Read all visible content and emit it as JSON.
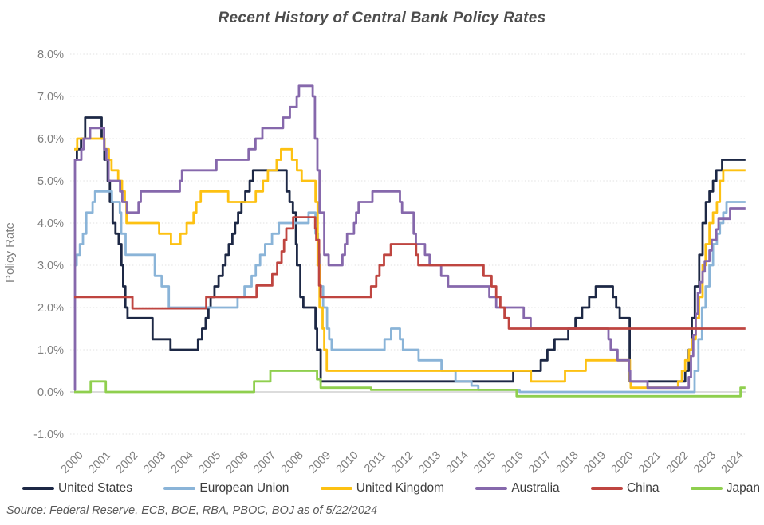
{
  "chart_data": {
    "type": "line",
    "title": "Recent History of Central Bank Policy Rates",
    "ylabel": "Policy Rate",
    "xlabel": "",
    "source_note": "Source: Federal Reserve, ECB, BOE, RBA, PBOC, BOJ as of 5/22/2024",
    "legend_position": "bottom",
    "grid": "horizontal-dotted",
    "step_interpolation": true,
    "ylim": [
      -1.0,
      8.0
    ],
    "x_range": [
      2000,
      2024.4
    ],
    "y_ticks": [
      8,
      7,
      6,
      5,
      4,
      3,
      2,
      1,
      0,
      -1
    ],
    "y_tick_labels": [
      "8.0%",
      "7.0%",
      "6.0%",
      "5.0%",
      "4.0%",
      "3.0%",
      "2.0%",
      "1.0%",
      "0.0%",
      "-1.0%"
    ],
    "x_ticks": [
      2000,
      2001,
      2002,
      2003,
      2004,
      2005,
      2006,
      2007,
      2008,
      2009,
      2010,
      2011,
      2012,
      2013,
      2014,
      2015,
      2016,
      2017,
      2018,
      2019,
      2020,
      2021,
      2022,
      2023,
      2024
    ],
    "x_tick_labels": [
      "2000",
      "2001",
      "2002",
      "2003",
      "2004",
      "2005",
      "2006",
      "2007",
      "2008",
      "2009",
      "2010",
      "2011",
      "2012",
      "2013",
      "2014",
      "2015",
      "2016",
      "2017",
      "2018",
      "2019",
      "2020",
      "2021",
      "2022",
      "2023",
      "2024"
    ],
    "axis_text_color": "#7f7f7f",
    "grid_color": "#e2e2e2",
    "zero_line_color": "#c8c8c8",
    "series": [
      {
        "name": "United States",
        "color": "#1d2845",
        "points": [
          [
            2000.0,
            5.5
          ],
          [
            2000.1,
            5.75
          ],
          [
            2000.25,
            6.0
          ],
          [
            2000.4,
            6.5
          ],
          [
            2001.0,
            6.0
          ],
          [
            2001.1,
            5.5
          ],
          [
            2001.22,
            5.0
          ],
          [
            2001.3,
            4.5
          ],
          [
            2001.4,
            4.0
          ],
          [
            2001.5,
            3.75
          ],
          [
            2001.62,
            3.5
          ],
          [
            2001.72,
            3.0
          ],
          [
            2001.78,
            2.5
          ],
          [
            2001.86,
            2.0
          ],
          [
            2001.94,
            1.75
          ],
          [
            2002.85,
            1.25
          ],
          [
            2003.5,
            1.0
          ],
          [
            2004.5,
            1.25
          ],
          [
            2004.65,
            1.5
          ],
          [
            2004.78,
            1.75
          ],
          [
            2004.88,
            2.0
          ],
          [
            2004.96,
            2.25
          ],
          [
            2005.1,
            2.5
          ],
          [
            2005.25,
            2.75
          ],
          [
            2005.4,
            3.0
          ],
          [
            2005.5,
            3.25
          ],
          [
            2005.62,
            3.5
          ],
          [
            2005.75,
            3.75
          ],
          [
            2005.85,
            4.0
          ],
          [
            2005.96,
            4.25
          ],
          [
            2006.08,
            4.5
          ],
          [
            2006.22,
            4.75
          ],
          [
            2006.38,
            5.0
          ],
          [
            2006.5,
            5.25
          ],
          [
            2007.72,
            4.75
          ],
          [
            2007.83,
            4.5
          ],
          [
            2007.95,
            4.25
          ],
          [
            2008.06,
            3.5
          ],
          [
            2008.1,
            3.0
          ],
          [
            2008.22,
            2.25
          ],
          [
            2008.33,
            2.0
          ],
          [
            2008.77,
            1.5
          ],
          [
            2008.83,
            1.0
          ],
          [
            2008.96,
            0.25
          ],
          [
            2015.96,
            0.5
          ],
          [
            2016.96,
            0.75
          ],
          [
            2017.2,
            1.0
          ],
          [
            2017.46,
            1.25
          ],
          [
            2017.96,
            1.5
          ],
          [
            2018.22,
            1.75
          ],
          [
            2018.46,
            2.0
          ],
          [
            2018.72,
            2.25
          ],
          [
            2018.96,
            2.5
          ],
          [
            2019.58,
            2.25
          ],
          [
            2019.7,
            2.0
          ],
          [
            2019.83,
            1.75
          ],
          [
            2020.19,
            0.25
          ],
          [
            2022.21,
            0.5
          ],
          [
            2022.34,
            1.0
          ],
          [
            2022.45,
            1.75
          ],
          [
            2022.56,
            2.5
          ],
          [
            2022.72,
            3.25
          ],
          [
            2022.84,
            4.0
          ],
          [
            2022.96,
            4.5
          ],
          [
            2023.09,
            4.75
          ],
          [
            2023.22,
            5.0
          ],
          [
            2023.34,
            5.25
          ],
          [
            2023.55,
            5.5
          ]
        ]
      },
      {
        "name": "European Union",
        "color": "#8ab4d8",
        "points": [
          [
            2000.0,
            3.0
          ],
          [
            2000.09,
            3.25
          ],
          [
            2000.21,
            3.5
          ],
          [
            2000.32,
            3.75
          ],
          [
            2000.44,
            4.25
          ],
          [
            2000.67,
            4.5
          ],
          [
            2000.76,
            4.75
          ],
          [
            2001.37,
            4.5
          ],
          [
            2001.66,
            4.25
          ],
          [
            2001.71,
            3.75
          ],
          [
            2001.87,
            3.25
          ],
          [
            2002.93,
            2.75
          ],
          [
            2003.18,
            2.5
          ],
          [
            2003.44,
            2.0
          ],
          [
            2005.94,
            2.25
          ],
          [
            2006.19,
            2.5
          ],
          [
            2006.45,
            2.75
          ],
          [
            2006.6,
            3.0
          ],
          [
            2006.76,
            3.25
          ],
          [
            2006.94,
            3.5
          ],
          [
            2007.19,
            3.75
          ],
          [
            2007.44,
            4.0
          ],
          [
            2008.52,
            4.25
          ],
          [
            2008.77,
            3.75
          ],
          [
            2008.86,
            3.25
          ],
          [
            2008.94,
            2.5
          ],
          [
            2009.05,
            2.0
          ],
          [
            2009.19,
            1.5
          ],
          [
            2009.27,
            1.25
          ],
          [
            2009.36,
            1.0
          ],
          [
            2011.28,
            1.25
          ],
          [
            2011.52,
            1.5
          ],
          [
            2011.84,
            1.25
          ],
          [
            2011.95,
            1.0
          ],
          [
            2012.52,
            0.75
          ],
          [
            2013.35,
            0.5
          ],
          [
            2013.86,
            0.25
          ],
          [
            2014.44,
            0.15
          ],
          [
            2014.69,
            0.05
          ],
          [
            2016.19,
            0.0
          ],
          [
            2022.55,
            0.5
          ],
          [
            2022.69,
            1.25
          ],
          [
            2022.82,
            2.0
          ],
          [
            2022.95,
            2.5
          ],
          [
            2023.09,
            3.0
          ],
          [
            2023.22,
            3.5
          ],
          [
            2023.36,
            3.75
          ],
          [
            2023.47,
            4.0
          ],
          [
            2023.59,
            4.25
          ],
          [
            2023.71,
            4.5
          ]
        ]
      },
      {
        "name": "United Kingdom",
        "color": "#fdc112",
        "points": [
          [
            2000.0,
            5.75
          ],
          [
            2000.11,
            6.0
          ],
          [
            2001.1,
            5.75
          ],
          [
            2001.26,
            5.5
          ],
          [
            2001.36,
            5.25
          ],
          [
            2001.6,
            5.0
          ],
          [
            2001.74,
            4.75
          ],
          [
            2001.84,
            4.5
          ],
          [
            2001.9,
            4.0
          ],
          [
            2003.09,
            3.75
          ],
          [
            2003.52,
            3.5
          ],
          [
            2003.86,
            3.75
          ],
          [
            2004.09,
            4.0
          ],
          [
            2004.34,
            4.25
          ],
          [
            2004.44,
            4.5
          ],
          [
            2004.6,
            4.75
          ],
          [
            2005.6,
            4.5
          ],
          [
            2006.6,
            4.75
          ],
          [
            2006.86,
            5.0
          ],
          [
            2007.04,
            5.25
          ],
          [
            2007.36,
            5.5
          ],
          [
            2007.52,
            5.75
          ],
          [
            2007.92,
            5.5
          ],
          [
            2008.1,
            5.25
          ],
          [
            2008.27,
            5.0
          ],
          [
            2008.77,
            4.5
          ],
          [
            2008.85,
            3.0
          ],
          [
            2008.92,
            2.0
          ],
          [
            2009.03,
            1.5
          ],
          [
            2009.09,
            1.0
          ],
          [
            2009.18,
            0.5
          ],
          [
            2016.6,
            0.25
          ],
          [
            2017.84,
            0.5
          ],
          [
            2018.59,
            0.75
          ],
          [
            2020.2,
            0.25
          ],
          [
            2020.23,
            0.1
          ],
          [
            2021.95,
            0.25
          ],
          [
            2022.09,
            0.5
          ],
          [
            2022.21,
            0.75
          ],
          [
            2022.35,
            1.0
          ],
          [
            2022.45,
            1.25
          ],
          [
            2022.59,
            1.75
          ],
          [
            2022.71,
            2.25
          ],
          [
            2022.84,
            3.0
          ],
          [
            2022.95,
            3.5
          ],
          [
            2023.09,
            4.0
          ],
          [
            2023.22,
            4.25
          ],
          [
            2023.36,
            4.5
          ],
          [
            2023.47,
            5.0
          ],
          [
            2023.59,
            5.25
          ]
        ]
      },
      {
        "name": "Australia",
        "color": "#8668ac",
        "points": [
          [
            2000.0,
            0.05
          ],
          [
            2000.03,
            5.5
          ],
          [
            2000.26,
            5.75
          ],
          [
            2000.34,
            6.0
          ],
          [
            2000.58,
            6.25
          ],
          [
            2001.09,
            5.75
          ],
          [
            2001.17,
            5.5
          ],
          [
            2001.25,
            5.0
          ],
          [
            2001.67,
            4.75
          ],
          [
            2001.75,
            4.5
          ],
          [
            2001.92,
            4.25
          ],
          [
            2002.34,
            4.5
          ],
          [
            2002.42,
            4.75
          ],
          [
            2003.84,
            5.0
          ],
          [
            2003.92,
            5.25
          ],
          [
            2005.17,
            5.5
          ],
          [
            2006.34,
            5.75
          ],
          [
            2006.59,
            6.0
          ],
          [
            2006.84,
            6.25
          ],
          [
            2007.59,
            6.5
          ],
          [
            2007.84,
            6.75
          ],
          [
            2008.09,
            7.0
          ],
          [
            2008.17,
            7.25
          ],
          [
            2008.67,
            7.0
          ],
          [
            2008.75,
            6.0
          ],
          [
            2008.84,
            5.25
          ],
          [
            2008.92,
            4.25
          ],
          [
            2009.09,
            3.25
          ],
          [
            2009.25,
            3.0
          ],
          [
            2009.75,
            3.25
          ],
          [
            2009.84,
            3.5
          ],
          [
            2009.92,
            3.75
          ],
          [
            2010.17,
            4.0
          ],
          [
            2010.25,
            4.25
          ],
          [
            2010.34,
            4.5
          ],
          [
            2010.84,
            4.75
          ],
          [
            2011.84,
            4.5
          ],
          [
            2011.92,
            4.25
          ],
          [
            2012.34,
            3.75
          ],
          [
            2012.42,
            3.5
          ],
          [
            2012.75,
            3.25
          ],
          [
            2012.92,
            3.0
          ],
          [
            2013.34,
            2.75
          ],
          [
            2013.59,
            2.5
          ],
          [
            2015.09,
            2.25
          ],
          [
            2015.34,
            2.0
          ],
          [
            2016.34,
            1.75
          ],
          [
            2016.59,
            1.5
          ],
          [
            2019.42,
            1.25
          ],
          [
            2019.5,
            1.0
          ],
          [
            2019.75,
            0.75
          ],
          [
            2020.17,
            0.5
          ],
          [
            2020.21,
            0.25
          ],
          [
            2020.84,
            0.1
          ],
          [
            2022.34,
            0.35
          ],
          [
            2022.42,
            0.85
          ],
          [
            2022.5,
            1.35
          ],
          [
            2022.59,
            1.85
          ],
          [
            2022.67,
            2.35
          ],
          [
            2022.75,
            2.6
          ],
          [
            2022.84,
            2.85
          ],
          [
            2022.92,
            3.1
          ],
          [
            2023.09,
            3.35
          ],
          [
            2023.17,
            3.6
          ],
          [
            2023.34,
            3.85
          ],
          [
            2023.42,
            4.1
          ],
          [
            2023.84,
            4.35
          ]
        ]
      },
      {
        "name": "China",
        "color": "#bf4540",
        "points": [
          [
            2000.0,
            2.25
          ],
          [
            2002.12,
            1.98
          ],
          [
            2004.8,
            2.25
          ],
          [
            2006.63,
            2.52
          ],
          [
            2007.2,
            2.79
          ],
          [
            2007.38,
            3.06
          ],
          [
            2007.54,
            3.33
          ],
          [
            2007.63,
            3.6
          ],
          [
            2007.71,
            3.87
          ],
          [
            2007.96,
            4.14
          ],
          [
            2008.76,
            3.87
          ],
          [
            2008.8,
            3.6
          ],
          [
            2008.9,
            2.52
          ],
          [
            2008.96,
            2.25
          ],
          [
            2010.79,
            2.5
          ],
          [
            2010.98,
            2.75
          ],
          [
            2011.1,
            3.0
          ],
          [
            2011.26,
            3.25
          ],
          [
            2011.51,
            3.5
          ],
          [
            2012.43,
            3.25
          ],
          [
            2012.51,
            3.0
          ],
          [
            2014.88,
            2.75
          ],
          [
            2015.17,
            2.5
          ],
          [
            2015.34,
            2.25
          ],
          [
            2015.49,
            2.0
          ],
          [
            2015.64,
            1.75
          ],
          [
            2015.8,
            1.5
          ]
        ]
      },
      {
        "name": "Japan",
        "color": "#8fcf4e",
        "points": [
          [
            2000.0,
            0.0
          ],
          [
            2000.6,
            0.25
          ],
          [
            2001.15,
            0.0
          ],
          [
            2006.54,
            0.25
          ],
          [
            2007.13,
            0.5
          ],
          [
            2008.83,
            0.3
          ],
          [
            2008.96,
            0.1
          ],
          [
            2010.79,
            0.05
          ],
          [
            2016.08,
            -0.1
          ],
          [
            2024.22,
            0.1
          ]
        ]
      }
    ]
  }
}
